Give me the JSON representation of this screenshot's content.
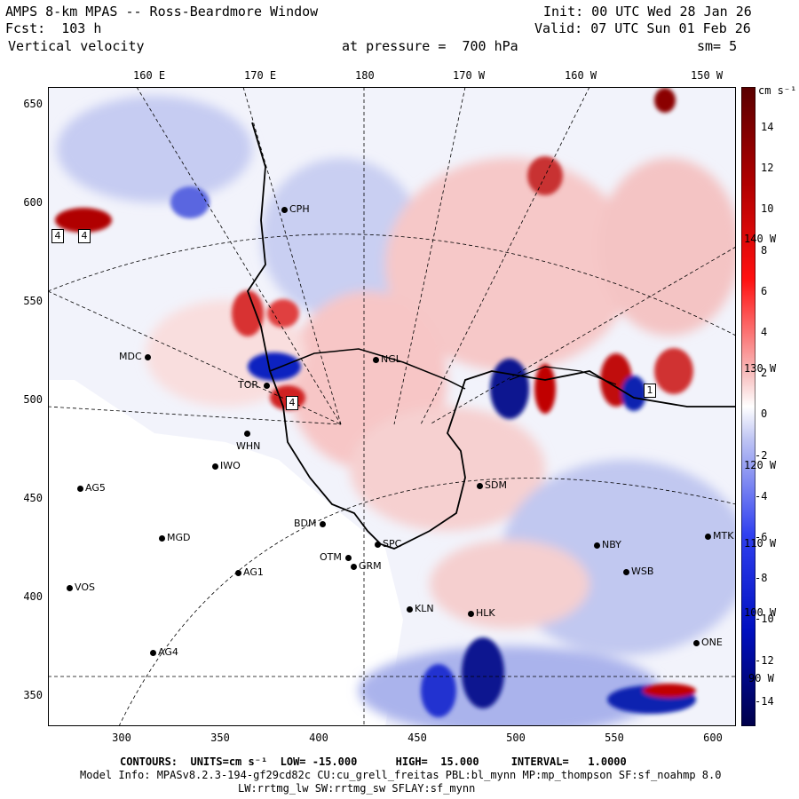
{
  "header": {
    "title": "AMPS 8-km MPAS -- Ross-Beardmore Window",
    "fcst": "Fcst:  103 h",
    "field": "Vertical velocity",
    "pressure": "at pressure =  700 hPa",
    "init": "Init: 00 UTC Wed 28 Jan 26",
    "valid": "Valid: 07 UTC Sun 01 Feb 26",
    "smooth": "sm= 5"
  },
  "axes": {
    "x_ticks": [
      "300",
      "350",
      "400",
      "450",
      "500",
      "550",
      "600"
    ],
    "y_ticks": [
      "650",
      "600",
      "550",
      "500",
      "450",
      "400",
      "350"
    ],
    "lon_top": [
      "160 E",
      "170 E",
      "180",
      "170 W",
      "160 W",
      "150 W"
    ],
    "lon_right": [
      "140 W",
      "130 W",
      "120 W",
      "110 W",
      "100 W",
      "90 W"
    ]
  },
  "colorbar": {
    "units": "cm s⁻¹",
    "labels": [
      "14",
      "12",
      "10",
      "8",
      "6",
      "4",
      "2",
      "0",
      "-2",
      "-4",
      "-6",
      "-8",
      "-10",
      "-12",
      "-14"
    ]
  },
  "stations": [
    {
      "id": "CPH"
    },
    {
      "id": "MDC"
    },
    {
      "id": "NGL"
    },
    {
      "id": "TOR"
    },
    {
      "id": "WHN"
    },
    {
      "id": "IWO"
    },
    {
      "id": "AG5"
    },
    {
      "id": "MGD"
    },
    {
      "id": "BDM"
    },
    {
      "id": "OTM"
    },
    {
      "id": "GRM"
    },
    {
      "id": "SPC"
    },
    {
      "id": "SDM"
    },
    {
      "id": "NBY"
    },
    {
      "id": "WSB"
    },
    {
      "id": "MTK"
    },
    {
      "id": "AG1"
    },
    {
      "id": "VOS"
    },
    {
      "id": "KLN"
    },
    {
      "id": "HLK"
    },
    {
      "id": "AG4"
    },
    {
      "id": "ONE"
    }
  ],
  "markers": [
    "4",
    "4",
    "4",
    "1"
  ],
  "footer": {
    "contours": "CONTOURS:  UNITS=cm s⁻¹  LOW= -15.000      HIGH=  15.000     INTERVAL=   1.0000",
    "model": "Model Info: MPASv8.2.3-194-gf29cd82c CU:cu_grell_freitas PBL:bl_mynn MP:mp_thompson SF:sf_noahmp 8.0",
    "phys": "LW:rrtmg_lw SW:rrtmg_sw SFLAY:sf_mynn"
  },
  "colors": {
    "red_dark": "#8b0000",
    "red": "#e00000",
    "pink": "#f4b0b0",
    "white": "#ffffff",
    "blue_light": "#b8c0f0",
    "blue": "#2030e0",
    "blue_dark": "#000080"
  }
}
